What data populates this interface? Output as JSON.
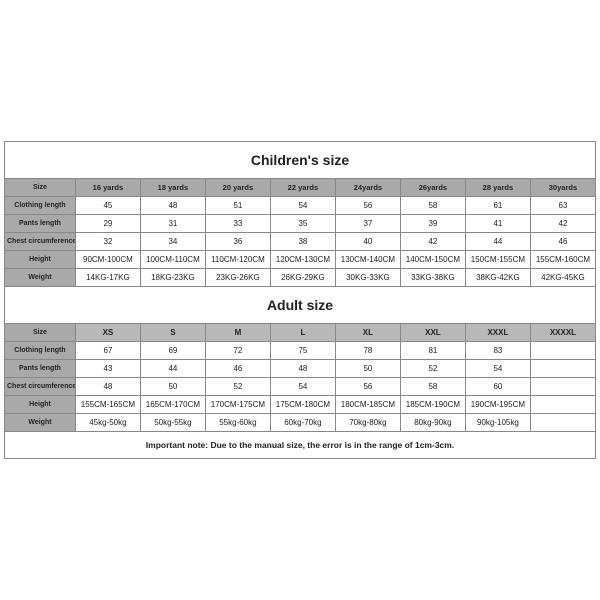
{
  "children": {
    "title": "Children's size",
    "header_label": "Size",
    "headers": [
      "16 yards",
      "18 yards",
      "20 yards",
      "22 yards",
      "24yards",
      "26yards",
      "28 yards",
      "30yards"
    ],
    "rows": [
      {
        "label": "Clothing length",
        "cells": [
          "45",
          "48",
          "51",
          "54",
          "56",
          "58",
          "61",
          "63"
        ]
      },
      {
        "label": "Pants length",
        "cells": [
          "29",
          "31",
          "33",
          "35",
          "37",
          "39",
          "41",
          "42"
        ]
      },
      {
        "label": "Chest circumference 1/2",
        "cells": [
          "32",
          "34",
          "36",
          "38",
          "40",
          "42",
          "44",
          "46"
        ]
      },
      {
        "label": "Height",
        "cells": [
          "90CM-100CM",
          "100CM-110CM",
          "110CM-120CM",
          "120CM-130CM",
          "130CM-140CM",
          "140CM-150CM",
          "150CM-155CM",
          "155CM-160CM"
        ]
      },
      {
        "label": "Weight",
        "cells": [
          "14KG-17KG",
          "18KG-23KG",
          "23KG-26KG",
          "26KG-29KG",
          "30KG-33KG",
          "33KG-38KG",
          "38KG-42KG",
          "42KG-45KG"
        ]
      }
    ]
  },
  "adult": {
    "title": "Adult size",
    "header_label": "Size",
    "headers": [
      "XS",
      "S",
      "M",
      "L",
      "XL",
      "XXL",
      "XXXL",
      "XXXXL"
    ],
    "rows": [
      {
        "label": "Clothing length",
        "cells": [
          "67",
          "69",
          "72",
          "75",
          "78",
          "81",
          "83",
          ""
        ]
      },
      {
        "label": "Pants length",
        "cells": [
          "43",
          "44",
          "46",
          "48",
          "50",
          "52",
          "54",
          ""
        ]
      },
      {
        "label": "Chest circumference 1/2",
        "cells": [
          "48",
          "50",
          "52",
          "54",
          "56",
          "58",
          "60",
          ""
        ]
      },
      {
        "label": "Height",
        "cells": [
          "155CM-165CM",
          "165CM-170CM",
          "170CM-175CM",
          "175CM-180CM",
          "180CM-185CM",
          "185CM-190CM",
          "190CM-195CM",
          ""
        ]
      },
      {
        "label": "Weight",
        "cells": [
          "45kg-50kg",
          "50kg-55kg",
          "55kg-60kg",
          "60kg-70kg",
          "70kg-80kg",
          "80kg-90kg",
          "90kg-105kg",
          ""
        ]
      }
    ]
  },
  "note": "Important note: Due to the manual size, the error is in the range of 1cm-3cm.",
  "styling": {
    "type": "table",
    "header_bg": "#a9a9a9",
    "cell_bg": "#ffffff",
    "border_color": "#888888",
    "title_fontsize": 14,
    "cell_fontsize": 8,
    "text_color": "#222222"
  }
}
